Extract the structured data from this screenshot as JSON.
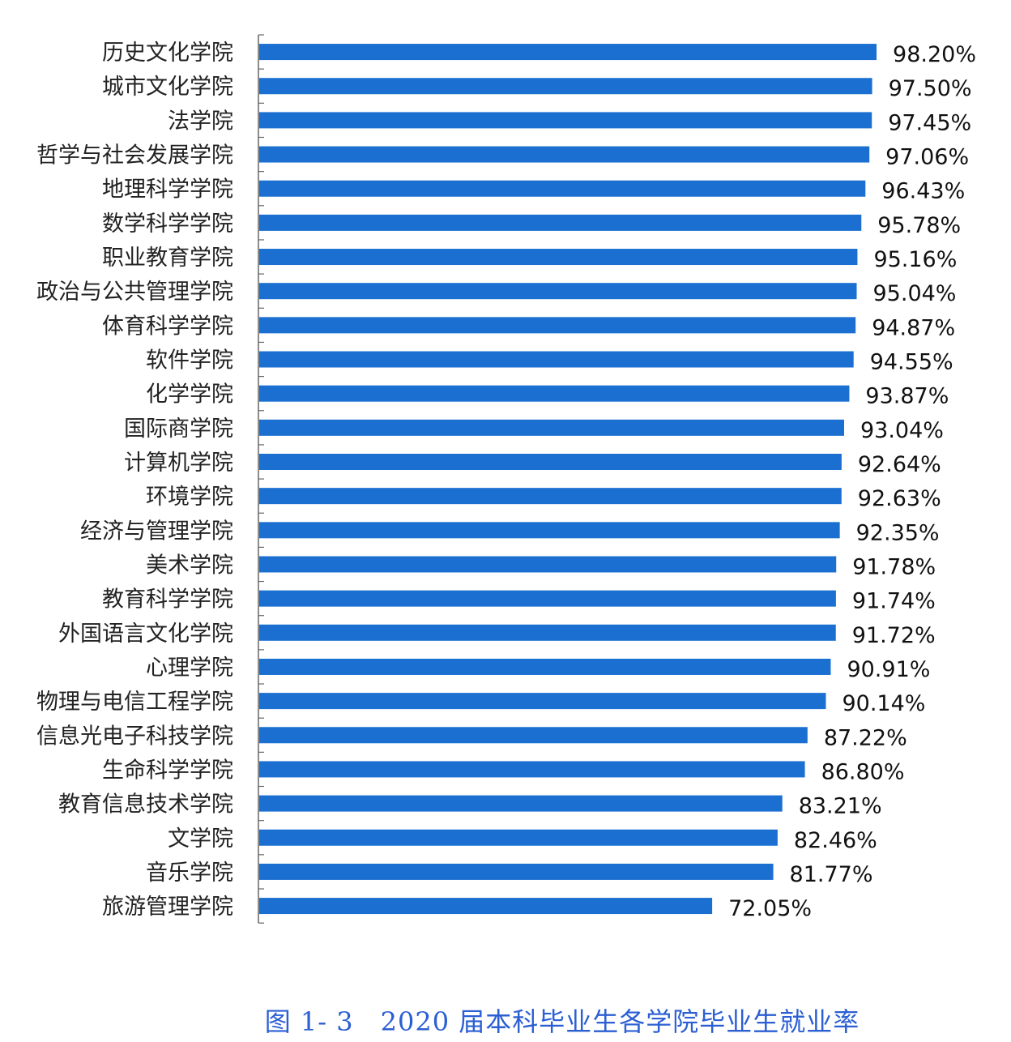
{
  "chart_data": {
    "type": "bar",
    "orientation": "horizontal",
    "title": "图 1- 3　2020 届本科毕业生各学院毕业生就业率",
    "xlabel": "",
    "ylabel": "",
    "xlim": [
      0,
      100
    ],
    "grid": false,
    "value_suffix": "%",
    "bar_color": "#1a6fd1",
    "categories": [
      "历史文化学院",
      "城市文化学院",
      "法学院",
      "哲学与社会发展学院",
      "地理科学学院",
      "数学科学学院",
      "职业教育学院",
      "政治与公共管理学院",
      "体育科学学院",
      "软件学院",
      "化学学院",
      "国际商学院",
      "计算机学院",
      "环境学院",
      "经济与管理学院",
      "美术学院",
      "教育科学学院",
      "外国语言文化学院",
      "心理学院",
      "物理与电信工程学院",
      "信息光电子科技学院",
      "生命科学学院",
      "教育信息技术学院",
      "文学院",
      "音乐学院",
      "旅游管理学院"
    ],
    "values": [
      98.2,
      97.5,
      97.45,
      97.06,
      96.43,
      95.78,
      95.16,
      95.04,
      94.87,
      94.55,
      93.87,
      93.04,
      92.64,
      92.63,
      92.35,
      91.78,
      91.74,
      91.72,
      90.91,
      90.14,
      87.22,
      86.8,
      83.21,
      82.46,
      81.77,
      72.05
    ],
    "data_labels": [
      "98.20%",
      "97.50%",
      "97.45%",
      "97.06%",
      "96.43%",
      "95.78%",
      "95.16%",
      "95.04%",
      "94.87%",
      "94.55%",
      "93.87%",
      "93.04%",
      "92.64%",
      "92.63%",
      "92.35%",
      "91.78%",
      "91.74%",
      "91.72%",
      "90.91%",
      "90.14%",
      "87.22%",
      "86.80%",
      "83.21%",
      "82.46%",
      "81.77%",
      "72.05%"
    ]
  }
}
